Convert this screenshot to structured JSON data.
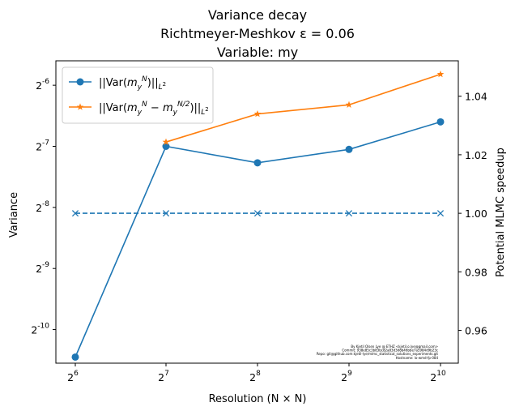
{
  "chart_data": {
    "type": "line",
    "title_lines": [
      "Variance decay",
      "Richtmeyer-Meshkov ε = 0.06",
      "Variable: my"
    ],
    "xlabel": "Resolution (N × N)",
    "ylabel_left": "Variance",
    "ylabel_right": "Potential MLMC speedup",
    "x": [
      64,
      128,
      256,
      512,
      1024
    ],
    "x_tick_base": "2",
    "x_tick_exponents": [
      "6",
      "7",
      "8",
      "9",
      "10"
    ],
    "y_left_scale": "log2",
    "y_left_tick_base": "2",
    "y_left_tick_exponents": [
      "-6",
      "-7",
      "-8",
      "-9",
      "-10"
    ],
    "y_left_tick_exponent_values": [
      -6,
      -7,
      -8,
      -9,
      -10
    ],
    "y_left_exp_range": [
      -10.55,
      -5.6
    ],
    "y_right_ticks": [
      "0.96",
      "0.98",
      "1.00",
      "1.02",
      "1.04"
    ],
    "y_right_tick_values": [
      0.96,
      0.98,
      1.0,
      1.02,
      1.04
    ],
    "y_right_range": [
      0.9488,
      1.0521
    ],
    "grid": false,
    "legend_position": "top-left",
    "series": [
      {
        "name": "||Var(m_y^N)||_{L^2}",
        "axis": "left",
        "marker": "circle",
        "linestyle": "solid",
        "color": "#1f77b4",
        "log2_values": [
          -10.45,
          -7.0,
          -7.27,
          -7.05,
          -6.6
        ]
      },
      {
        "name": "||Var(m_y^N - m_y^{N/2})||_{L^2}",
        "axis": "left",
        "marker": "star",
        "linestyle": "solid",
        "color": "#ff7f0e",
        "log2_values": [
          null,
          -6.93,
          -6.47,
          -6.32,
          -5.82
        ]
      },
      {
        "axis": "right",
        "marker": "x",
        "linestyle": "dashed",
        "color": "#1f77b4",
        "values": [
          1.0,
          1.0,
          1.0,
          1.0,
          1.0
        ]
      }
    ],
    "watermark_lines": [
      "By Kjetil Olsen Lye @ ETHZ <kjetil.o.lye@gmail.com>",
      "Commit: 938e85c3b83bc82a83d3d8b46bbe7a5984d9b23c",
      "Repo: git@github.com:kjetil-lye/mlmc_statistical_solutions_experiments.git",
      "Hostname: lo-wmd-fp-084"
    ]
  }
}
